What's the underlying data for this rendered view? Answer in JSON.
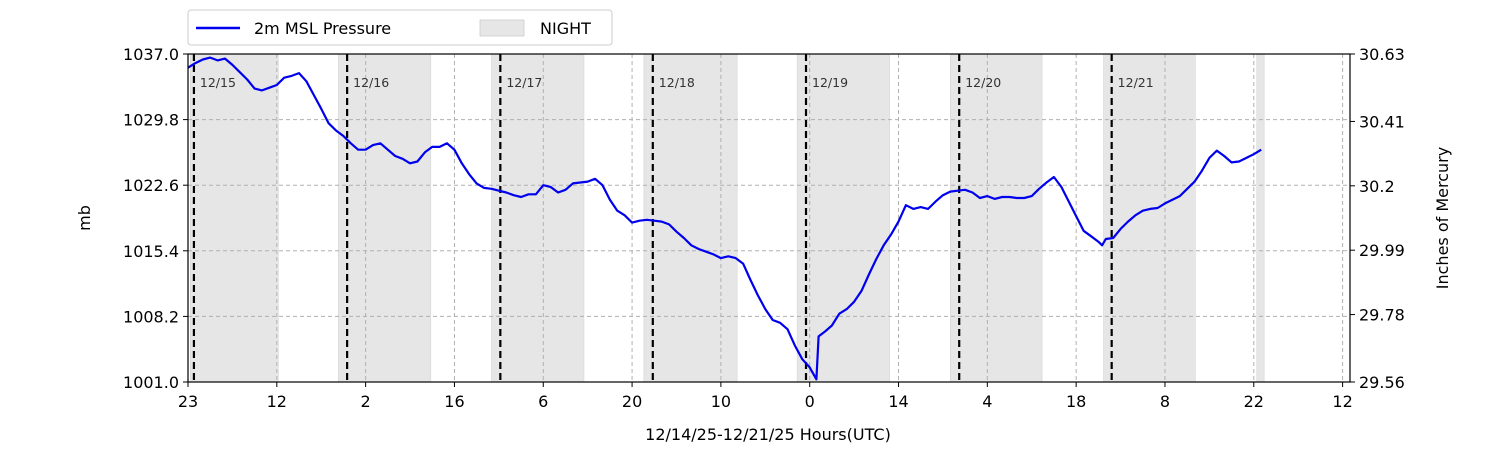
{
  "chart_data": {
    "type": "line",
    "xlabel": "12/14/25-12/21/25  Hours(UTC)",
    "ylabel_left": "mb",
    "ylabel_right": "Inches of Mercury",
    "x_range_hours": [
      0,
      157
    ],
    "ylim_left": [
      1001.0,
      1037.0
    ],
    "ylim_right": [
      29.56,
      30.63
    ],
    "left_ticks": [
      "1001.0",
      "1008.2",
      "1015.4",
      "1022.6",
      "1029.8",
      "1037.0"
    ],
    "right_ticks": [
      "29.56",
      "29.78",
      "29.99",
      "30.2",
      "30.41",
      "30.63"
    ],
    "x_ticks": [
      {
        "hour": 0,
        "label": "23"
      },
      {
        "hour": 12,
        "label": "12"
      },
      {
        "hour": 24,
        "label": "2"
      },
      {
        "hour": 36,
        "label": "16"
      },
      {
        "hour": 48,
        "label": "6"
      },
      {
        "hour": 60,
        "label": "20"
      },
      {
        "hour": 72,
        "label": "10"
      },
      {
        "hour": 84,
        "label": "0"
      },
      {
        "hour": 96,
        "label": "14"
      },
      {
        "hour": 108,
        "label": "4"
      },
      {
        "hour": 120,
        "label": "18"
      },
      {
        "hour": 132,
        "label": "8"
      },
      {
        "hour": 144,
        "label": "22"
      },
      {
        "hour": 156,
        "label": "12"
      }
    ],
    "grid": true,
    "legend_placement": "top-left, above plot",
    "legend": [
      {
        "label": "2m MSL Pressure",
        "kind": "line",
        "color": "#0000ee"
      },
      {
        "label": "NIGHT",
        "kind": "patch",
        "color": "#e6e6e6"
      }
    ],
    "day_markers": [
      {
        "hour": 0.8,
        "label": "12/15"
      },
      {
        "hour": 21.5,
        "label": "12/16"
      },
      {
        "hour": 42.2,
        "label": "12/17"
      },
      {
        "hour": 62.8,
        "label": "12/18"
      },
      {
        "hour": 83.5,
        "label": "12/19"
      },
      {
        "hour": 104.2,
        "label": "12/20"
      },
      {
        "hour": 124.8,
        "label": "12/21"
      }
    ],
    "night_periods": [
      [
        0.3,
        12.2
      ],
      [
        20.3,
        32.8
      ],
      [
        41.0,
        53.5
      ],
      [
        61.6,
        74.2
      ],
      [
        82.3,
        94.8
      ],
      [
        103.0,
        115.4
      ],
      [
        123.7,
        136.1
      ],
      [
        144.4,
        145.4
      ]
    ],
    "series": [
      {
        "name": "2m MSL Pressure",
        "color": "#0000ee",
        "points": [
          [
            0.0,
            1035.5
          ],
          [
            1.0,
            1036.0
          ],
          [
            2.0,
            1036.4
          ],
          [
            3.0,
            1036.6
          ],
          [
            4.0,
            1036.3
          ],
          [
            5.0,
            1036.5
          ],
          [
            6.0,
            1035.8
          ],
          [
            7.0,
            1035.0
          ],
          [
            8.0,
            1034.2
          ],
          [
            9.0,
            1033.2
          ],
          [
            10.0,
            1033.0
          ],
          [
            11.0,
            1033.3
          ],
          [
            12.0,
            1033.6
          ],
          [
            13.0,
            1034.4
          ],
          [
            14.0,
            1034.6
          ],
          [
            15.0,
            1034.9
          ],
          [
            16.0,
            1034.0
          ],
          [
            17.0,
            1032.5
          ],
          [
            18.0,
            1031.0
          ],
          [
            19.0,
            1029.4
          ],
          [
            20.0,
            1028.6
          ],
          [
            21.0,
            1028.0
          ],
          [
            22.0,
            1027.2
          ],
          [
            23.0,
            1026.5
          ],
          [
            24.0,
            1026.5
          ],
          [
            25.0,
            1027.0
          ],
          [
            26.0,
            1027.2
          ],
          [
            27.0,
            1026.5
          ],
          [
            28.0,
            1025.8
          ],
          [
            29.0,
            1025.5
          ],
          [
            30.0,
            1025.0
          ],
          [
            31.0,
            1025.2
          ],
          [
            32.0,
            1026.2
          ],
          [
            33.0,
            1026.8
          ],
          [
            34.0,
            1026.8
          ],
          [
            35.0,
            1027.2
          ],
          [
            36.0,
            1026.5
          ],
          [
            37.0,
            1025.0
          ],
          [
            38.0,
            1023.8
          ],
          [
            39.0,
            1022.8
          ],
          [
            40.0,
            1022.3
          ],
          [
            41.0,
            1022.2
          ],
          [
            42.0,
            1022.0
          ],
          [
            43.0,
            1021.8
          ],
          [
            44.0,
            1021.5
          ],
          [
            45.0,
            1021.3
          ],
          [
            46.0,
            1021.6
          ],
          [
            47.0,
            1021.6
          ],
          [
            48.0,
            1022.6
          ],
          [
            49.0,
            1022.4
          ],
          [
            50.0,
            1021.8
          ],
          [
            51.0,
            1022.1
          ],
          [
            52.0,
            1022.8
          ],
          [
            53.0,
            1022.9
          ],
          [
            54.0,
            1023.0
          ],
          [
            55.0,
            1023.3
          ],
          [
            56.0,
            1022.6
          ],
          [
            57.0,
            1021.0
          ],
          [
            58.0,
            1019.8
          ],
          [
            59.0,
            1019.3
          ],
          [
            60.0,
            1018.5
          ],
          [
            61.0,
            1018.7
          ],
          [
            62.0,
            1018.8
          ],
          [
            63.0,
            1018.7
          ],
          [
            64.0,
            1018.6
          ],
          [
            65.0,
            1018.3
          ],
          [
            66.0,
            1017.5
          ],
          [
            67.0,
            1016.8
          ],
          [
            68.0,
            1016.0
          ],
          [
            69.0,
            1015.6
          ],
          [
            70.0,
            1015.3
          ],
          [
            71.0,
            1015.0
          ],
          [
            72.0,
            1014.6
          ],
          [
            73.0,
            1014.8
          ],
          [
            74.0,
            1014.6
          ],
          [
            75.0,
            1014.0
          ],
          [
            76.0,
            1012.2
          ],
          [
            77.0,
            1010.5
          ],
          [
            78.0,
            1009.0
          ],
          [
            79.0,
            1007.8
          ],
          [
            80.0,
            1007.5
          ],
          [
            81.0,
            1006.8
          ],
          [
            82.0,
            1005.0
          ],
          [
            83.0,
            1003.5
          ],
          [
            84.0,
            1002.6
          ],
          [
            84.9,
            1001.3
          ],
          [
            85.2,
            1006.0
          ],
          [
            86.0,
            1006.5
          ],
          [
            87.0,
            1007.2
          ],
          [
            88.0,
            1008.5
          ],
          [
            89.0,
            1009.0
          ],
          [
            90.0,
            1009.8
          ],
          [
            91.0,
            1011.0
          ],
          [
            92.0,
            1012.8
          ],
          [
            93.0,
            1014.5
          ],
          [
            94.0,
            1016.0
          ],
          [
            95.0,
            1017.2
          ],
          [
            96.0,
            1018.6
          ],
          [
            97.0,
            1020.4
          ],
          [
            98.0,
            1020.0
          ],
          [
            99.0,
            1020.2
          ],
          [
            100.0,
            1020.0
          ],
          [
            101.0,
            1020.8
          ],
          [
            102.0,
            1021.5
          ],
          [
            103.0,
            1021.9
          ],
          [
            104.0,
            1022.0
          ],
          [
            105.0,
            1022.1
          ],
          [
            106.0,
            1021.8
          ],
          [
            107.0,
            1021.2
          ],
          [
            108.0,
            1021.4
          ],
          [
            109.0,
            1021.1
          ],
          [
            110.0,
            1021.3
          ],
          [
            111.0,
            1021.3
          ],
          [
            112.0,
            1021.2
          ],
          [
            113.0,
            1021.2
          ],
          [
            114.0,
            1021.4
          ],
          [
            115.0,
            1022.2
          ],
          [
            116.0,
            1022.9
          ],
          [
            117.0,
            1023.5
          ],
          [
            118.0,
            1022.4
          ],
          [
            119.0,
            1020.8
          ],
          [
            120.0,
            1019.2
          ],
          [
            121.0,
            1017.6
          ],
          [
            122.0,
            1017.0
          ],
          [
            123.0,
            1016.4
          ],
          [
            123.5,
            1016.0
          ],
          [
            124.0,
            1016.7
          ],
          [
            125.0,
            1016.8
          ],
          [
            126.0,
            1017.8
          ],
          [
            127.0,
            1018.6
          ],
          [
            128.0,
            1019.3
          ],
          [
            129.0,
            1019.8
          ],
          [
            130.0,
            1020.0
          ],
          [
            131.0,
            1020.1
          ],
          [
            132.0,
            1020.6
          ],
          [
            133.0,
            1021.0
          ],
          [
            134.0,
            1021.4
          ],
          [
            135.0,
            1022.2
          ],
          [
            136.0,
            1023.0
          ],
          [
            137.0,
            1024.2
          ],
          [
            138.0,
            1025.6
          ],
          [
            139.0,
            1026.4
          ],
          [
            140.0,
            1025.8
          ],
          [
            141.0,
            1025.1
          ],
          [
            142.0,
            1025.2
          ],
          [
            143.0,
            1025.6
          ],
          [
            144.0,
            1026.0
          ],
          [
            145.0,
            1026.5
          ]
        ]
      }
    ]
  }
}
